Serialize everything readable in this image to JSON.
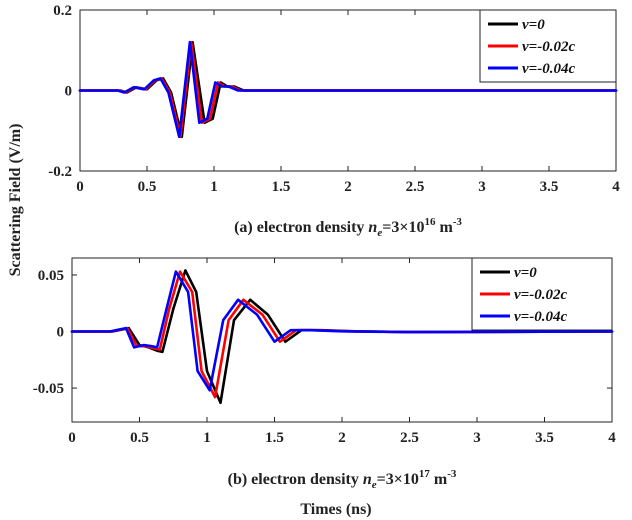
{
  "figure": {
    "ylabel": "Scattering Field (V/m)",
    "xlabel": "Times (ns)"
  },
  "chart_data": [
    {
      "type": "line",
      "title": "(a) electron density n_e=3×10^16 m^-3",
      "caption": {
        "prefix": "(a) electron density ",
        "var": "n",
        "sub": "e",
        "mid": "=3×10",
        "sup": "16",
        "unit": " m",
        "unit_sup": "-3"
      },
      "xlabel": "",
      "ylabel": "Scattering Field (V/m)",
      "xlim": [
        0,
        4
      ],
      "ylim": [
        -0.2,
        0.2
      ],
      "xticks": [
        0,
        0.5,
        1,
        1.5,
        2,
        2.5,
        3,
        3.5,
        4
      ],
      "xtick_labels": [
        "0",
        "0.5",
        "1",
        "1.5",
        "2",
        "2.5",
        "3",
        "3.5",
        "4"
      ],
      "yticks": [
        0.2,
        0,
        -0.2
      ],
      "ytick_labels": [
        "0.2",
        "0",
        "-0.2"
      ],
      "legend_position": "top-right",
      "series": [
        {
          "name": "v=0",
          "label": "v=0",
          "color": "#000000",
          "x": [
            0,
            0.3,
            0.35,
            0.42,
            0.5,
            0.57,
            0.62,
            0.68,
            0.76,
            0.84,
            0.93,
            0.99,
            1.05,
            1.1,
            1.15,
            1.22,
            4.0
          ],
          "y": [
            0,
            0,
            -0.005,
            0.008,
            0.003,
            0.025,
            0.03,
            -0.005,
            -0.115,
            0.12,
            -0.08,
            -0.07,
            0.02,
            0.01,
            0.01,
            0,
            0
          ]
        },
        {
          "name": "v=-0.02c",
          "label": "v=-0.02c",
          "color": "#ff0000",
          "x": [
            0,
            0.29,
            0.34,
            0.41,
            0.49,
            0.56,
            0.61,
            0.67,
            0.75,
            0.83,
            0.91,
            0.97,
            1.03,
            1.08,
            1.13,
            1.2,
            4.0
          ],
          "y": [
            0,
            0,
            -0.005,
            0.008,
            0.003,
            0.025,
            0.03,
            -0.005,
            -0.115,
            0.12,
            -0.08,
            -0.07,
            0.02,
            0.01,
            0.01,
            0,
            0
          ]
        },
        {
          "name": "v=-0.04c",
          "label": "v=-0.04c",
          "color": "#0000ff",
          "x": [
            0,
            0.28,
            0.33,
            0.4,
            0.48,
            0.55,
            0.6,
            0.66,
            0.74,
            0.82,
            0.89,
            0.95,
            1.01,
            1.06,
            1.11,
            1.18,
            4.0
          ],
          "y": [
            0,
            0,
            -0.005,
            0.008,
            0.003,
            0.025,
            0.03,
            -0.005,
            -0.115,
            0.12,
            -0.08,
            -0.07,
            0.02,
            0.01,
            0.01,
            0,
            0
          ]
        }
      ]
    },
    {
      "type": "line",
      "title": "(b) electron density n_e=3×10^17 m^-3",
      "caption": {
        "prefix": "(b) electron density ",
        "var": "n",
        "sub": "e",
        "mid": "=3×10",
        "sup": "17",
        "unit": " m",
        "unit_sup": "-3"
      },
      "xlabel": "Times (ns)",
      "ylabel": "Scattering Field (V/m)",
      "xlim": [
        0,
        4
      ],
      "ylim": [
        -0.08,
        0.065
      ],
      "xticks": [
        0,
        0.5,
        1,
        1.5,
        2,
        2.5,
        3,
        3.5,
        4
      ],
      "xtick_labels": [
        "0",
        "0.5",
        "1",
        "1.5",
        "2",
        "2.5",
        "3",
        "3.5",
        "4"
      ],
      "yticks": [
        0.05,
        0,
        -0.05
      ],
      "ytick_labels": [
        "0.05",
        "0",
        "-0.05"
      ],
      "legend_position": "top-right",
      "series": [
        {
          "name": "v=0",
          "label": "v=0",
          "color": "#000000",
          "x": [
            0,
            0.3,
            0.36,
            0.42,
            0.5,
            0.57,
            0.63,
            0.67,
            0.75,
            0.84,
            0.92,
            1.0,
            1.1,
            1.2,
            1.32,
            1.45,
            1.58,
            1.7,
            1.85,
            2.1,
            2.5,
            4.0
          ],
          "y": [
            0,
            0,
            0.0015,
            0.003,
            -0.012,
            -0.014,
            -0.017,
            -0.018,
            0.02,
            0.054,
            0.035,
            -0.035,
            -0.063,
            0.01,
            0.028,
            0.015,
            -0.009,
            0.0012,
            0.0012,
            0.0002,
            -0.0005,
            0
          ]
        },
        {
          "name": "v=-0.02c",
          "label": "v=-0.02c",
          "color": "#ff0000",
          "x": [
            0,
            0.29,
            0.35,
            0.41,
            0.48,
            0.55,
            0.61,
            0.65,
            0.72,
            0.8,
            0.89,
            0.96,
            1.06,
            1.16,
            1.27,
            1.41,
            1.54,
            1.66,
            1.81,
            2.05,
            2.5,
            4.0
          ],
          "y": [
            0,
            0,
            0.0015,
            0.003,
            -0.013,
            -0.013,
            -0.015,
            -0.016,
            0.02,
            0.053,
            0.035,
            -0.035,
            -0.058,
            0.01,
            0.028,
            0.015,
            -0.009,
            0.0012,
            0.0012,
            0.0002,
            -0.0005,
            0
          ]
        },
        {
          "name": "v=-0.04c",
          "label": "v=-0.04c",
          "color": "#0000ff",
          "x": [
            0,
            0.28,
            0.34,
            0.4,
            0.46,
            0.53,
            0.59,
            0.63,
            0.7,
            0.77,
            0.86,
            0.93,
            1.02,
            1.12,
            1.23,
            1.37,
            1.5,
            1.62,
            1.77,
            2.0,
            2.5,
            4.0
          ],
          "y": [
            0,
            0,
            0.0015,
            0.003,
            -0.014,
            -0.012,
            -0.013,
            -0.014,
            0.02,
            0.053,
            0.035,
            -0.035,
            -0.052,
            0.01,
            0.028,
            0.015,
            -0.009,
            0.0012,
            0.0012,
            0.0002,
            -0.0005,
            0
          ]
        }
      ]
    }
  ]
}
